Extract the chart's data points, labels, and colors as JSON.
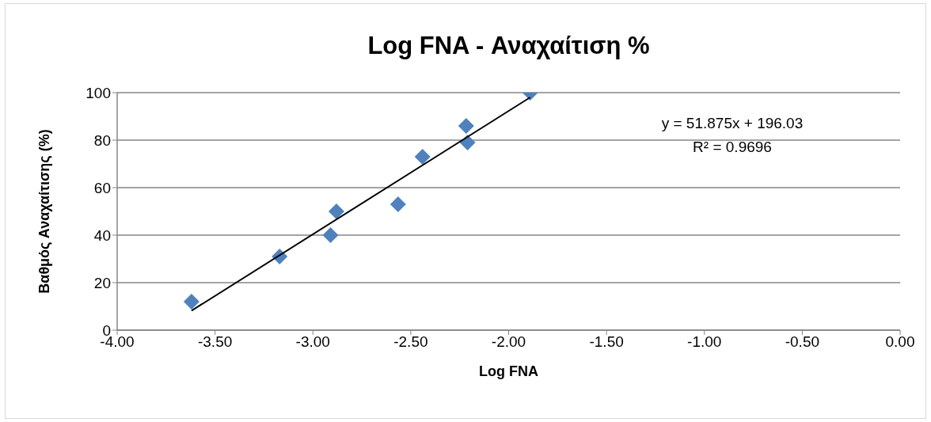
{
  "chart_data": {
    "type": "scatter",
    "title": "Log FNA - Αναχαίτιση %",
    "xlabel": "Log FNA",
    "ylabel": "Βαθμός Αναχαίτισης (%)",
    "series": [
      {
        "color": "#4f81bd",
        "marker": "diamond",
        "x": [
          -3.62,
          -3.17,
          -2.91,
          -2.88,
          -2.565,
          -2.44,
          -2.217,
          -2.21,
          -1.89
        ],
        "values": [
          12,
          31,
          40,
          50,
          53,
          73,
          86,
          79,
          100
        ]
      },
      {
        "type": "line",
        "color": "#000000",
        "marker": "none",
        "x": [
          -3.62,
          -1.89
        ],
        "values": [
          8.2,
          98
        ]
      }
    ],
    "annotations": [
      "y = 51.875x + 196.03",
      "R² = 0.9696"
    ],
    "xlim": [
      -4,
      0
    ],
    "xticks": [
      {
        "value": -4,
        "label": "-4.00"
      },
      {
        "value": -3.5,
        "label": "-3.50"
      },
      {
        "value": -3,
        "label": "-3.00"
      },
      {
        "value": -2.5,
        "label": "-2.50"
      },
      {
        "value": -2,
        "label": "-2.00"
      },
      {
        "value": -1.5,
        "label": "-1.50"
      },
      {
        "value": -1,
        "label": "-1.00"
      },
      {
        "value": -0.5,
        "label": "-0.50"
      },
      {
        "value": 0,
        "label": "0.00"
      }
    ],
    "ylim": [
      0,
      100
    ],
    "yticks": [
      0,
      20,
      40,
      60,
      80,
      100
    ],
    "grid": "y",
    "legend": false
  }
}
